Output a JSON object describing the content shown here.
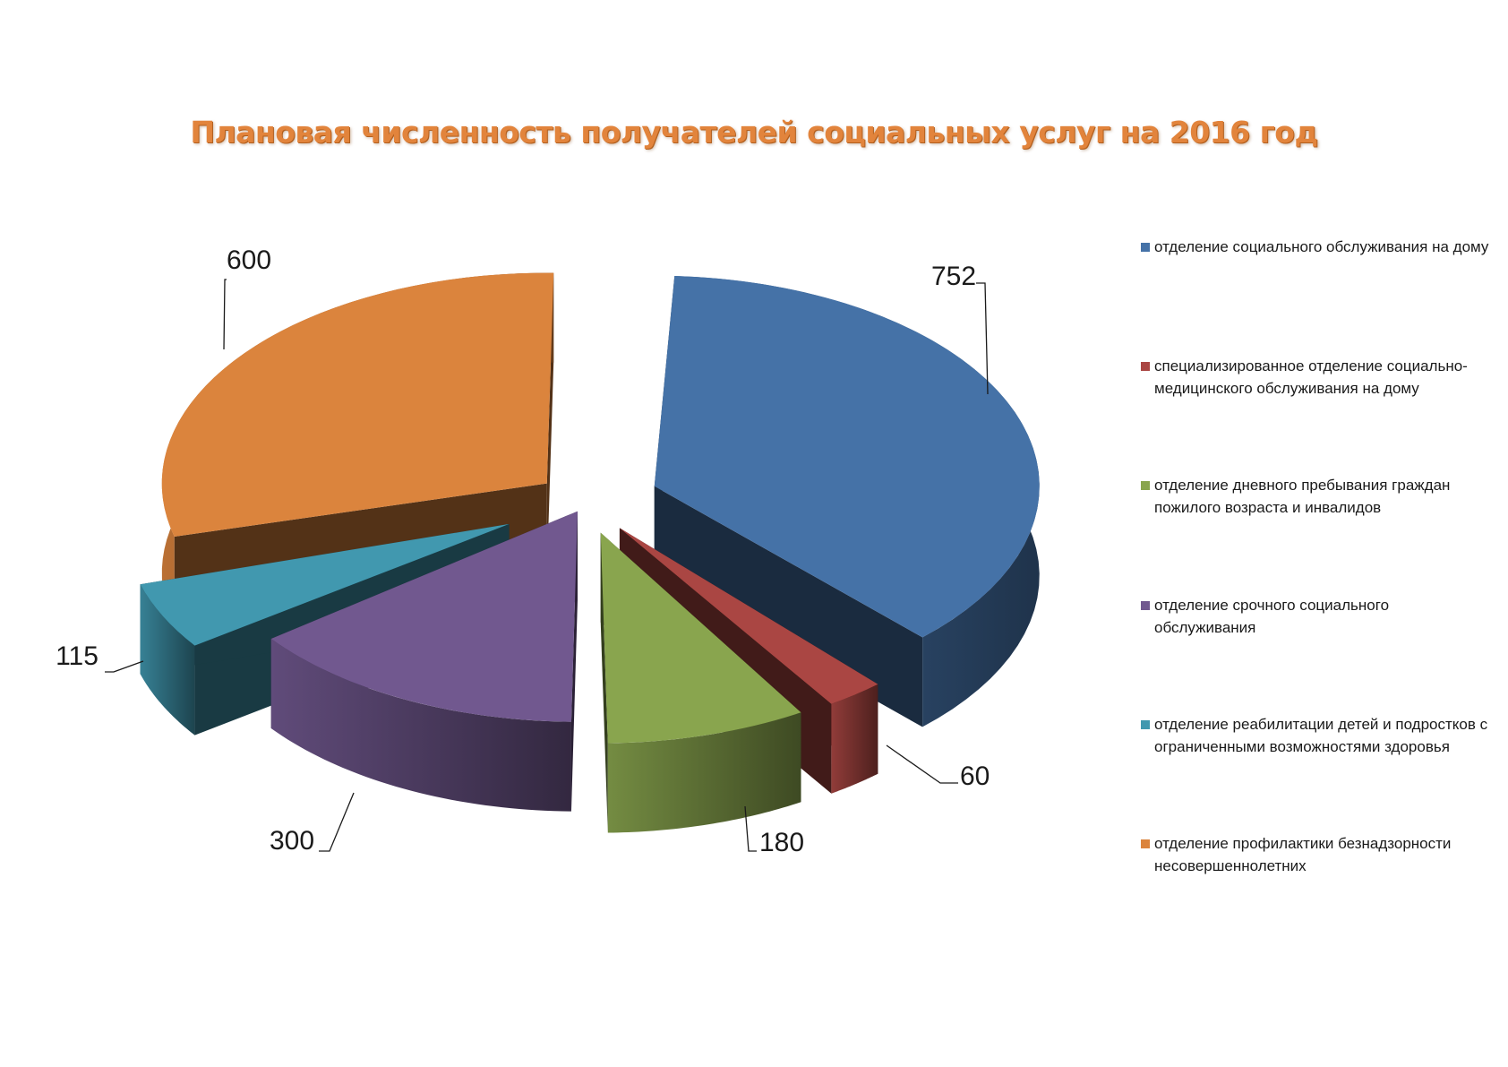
{
  "chart_data": {
    "type": "pie",
    "title": "Плановая численность получателей социальных услуг на 2016 год",
    "slices": [
      {
        "name": "отделение социального обслуживания на дому",
        "value": 752,
        "color": "#4572a7"
      },
      {
        "name": "специализированное отделение социально- медицинского обслуживания на дому",
        "value": 60,
        "color": "#aa4643"
      },
      {
        "name": "отделение дневного пребывания граждан пожилого возраста и инвалидов",
        "value": 180,
        "color": "#89a54e"
      },
      {
        "name": "отделение срочного социального обслуживания",
        "value": 300,
        "color": "#71588f"
      },
      {
        "name": "отделение реабилитации детей и подростков с ограниченными возможностями здоровья",
        "value": 115,
        "color": "#4198af"
      },
      {
        "name": "отделение профилактики безнадзорности несовершеннолетних",
        "value": 600,
        "color": "#db843d"
      }
    ],
    "legend_position": "right",
    "style": "3d-exploded"
  }
}
